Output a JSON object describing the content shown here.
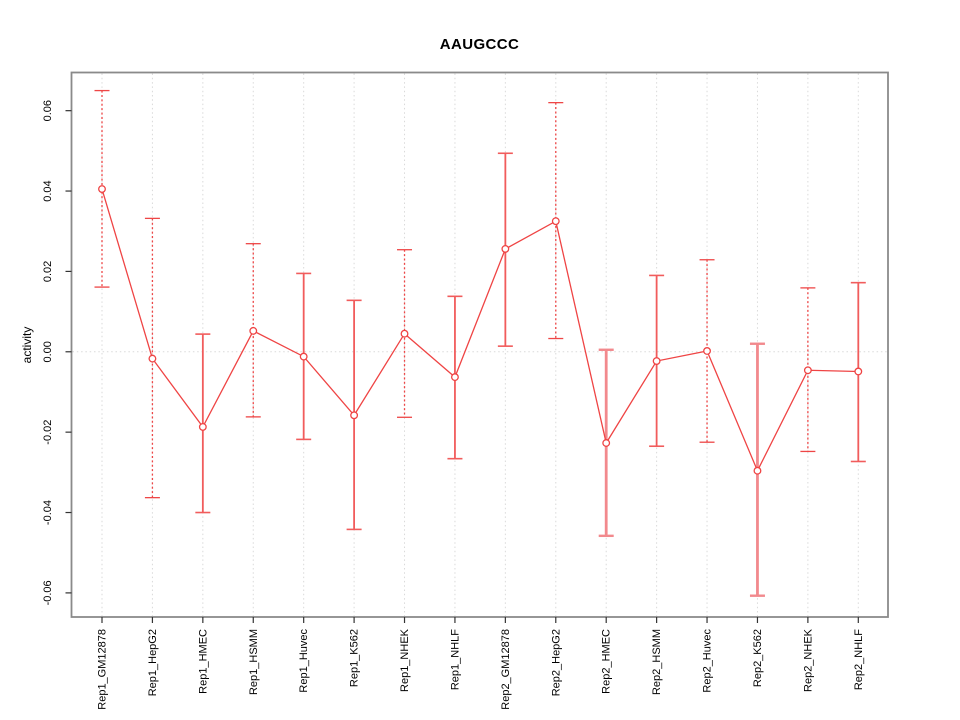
{
  "chart_data": {
    "type": "line",
    "title": "AAUGCCC",
    "ylabel": "activity",
    "xlabel": "",
    "legend": "none",
    "grid": {
      "vertical_dotted_per_category": true,
      "horizontal_dotted_at_zero": true
    },
    "ylim": [
      -0.066,
      0.0695
    ],
    "yticks": [
      -0.06,
      -0.04,
      -0.02,
      0.0,
      0.02,
      0.04,
      0.06
    ],
    "ytick_labels": [
      "-0.06",
      "-0.04",
      "-0.02",
      "0.00",
      "0.02",
      "0.04",
      "0.06"
    ],
    "categories": [
      "Rep1_GM12878",
      "Rep1_HepG2",
      "Rep1_HMEC",
      "Rep1_HSMM",
      "Rep1_Huvec",
      "Rep1_K562",
      "Rep1_NHEK",
      "Rep1_NHLF",
      "Rep2_GM12878",
      "Rep2_HepG2",
      "Rep2_HMEC",
      "Rep2_HSMM",
      "Rep2_Huvec",
      "Rep2_K562",
      "Rep2_NHEK",
      "Rep2_NHLF"
    ],
    "series": [
      {
        "name": "activity",
        "values": [
          0.0405,
          -0.0017,
          -0.0187,
          0.0052,
          -0.0012,
          -0.0158,
          0.0045,
          -0.0063,
          0.0256,
          0.0325,
          -0.0227,
          -0.0023,
          0.0002,
          -0.0296,
          -0.0046,
          -0.0049
        ],
        "ci_lower": [
          0.0161,
          -0.0363,
          -0.04,
          -0.0162,
          -0.0218,
          -0.0442,
          -0.0163,
          -0.0266,
          0.0014,
          0.0033,
          -0.0458,
          -0.0235,
          -0.0225,
          -0.0607,
          -0.0248,
          -0.0273
        ],
        "ci_upper": [
          0.065,
          0.0332,
          0.0044,
          0.0269,
          0.0195,
          0.0128,
          0.0254,
          0.0138,
          0.0494,
          0.062,
          0.0005,
          0.019,
          0.0229,
          0.002,
          0.0159,
          0.0172
        ],
        "bar_styles": [
          "dotted",
          "dotted",
          "solid",
          "dotted",
          "solid",
          "solid",
          "dotted",
          "solid",
          "solid",
          "dotted",
          "thick",
          "solid",
          "dotted",
          "thick",
          "dotted",
          "solid"
        ]
      }
    ],
    "colors": {
      "line": "#ef4444",
      "marker_stroke": "#ef4444",
      "marker_fill": "#ffffff",
      "bar_dotted": "#ee4646",
      "bar_solid": "#f15c5c",
      "bar_thick": "#f2898d",
      "grid": "#dadada",
      "axis_box": "#8a8a8a",
      "tick": "#333333",
      "text": "#000000"
    }
  }
}
